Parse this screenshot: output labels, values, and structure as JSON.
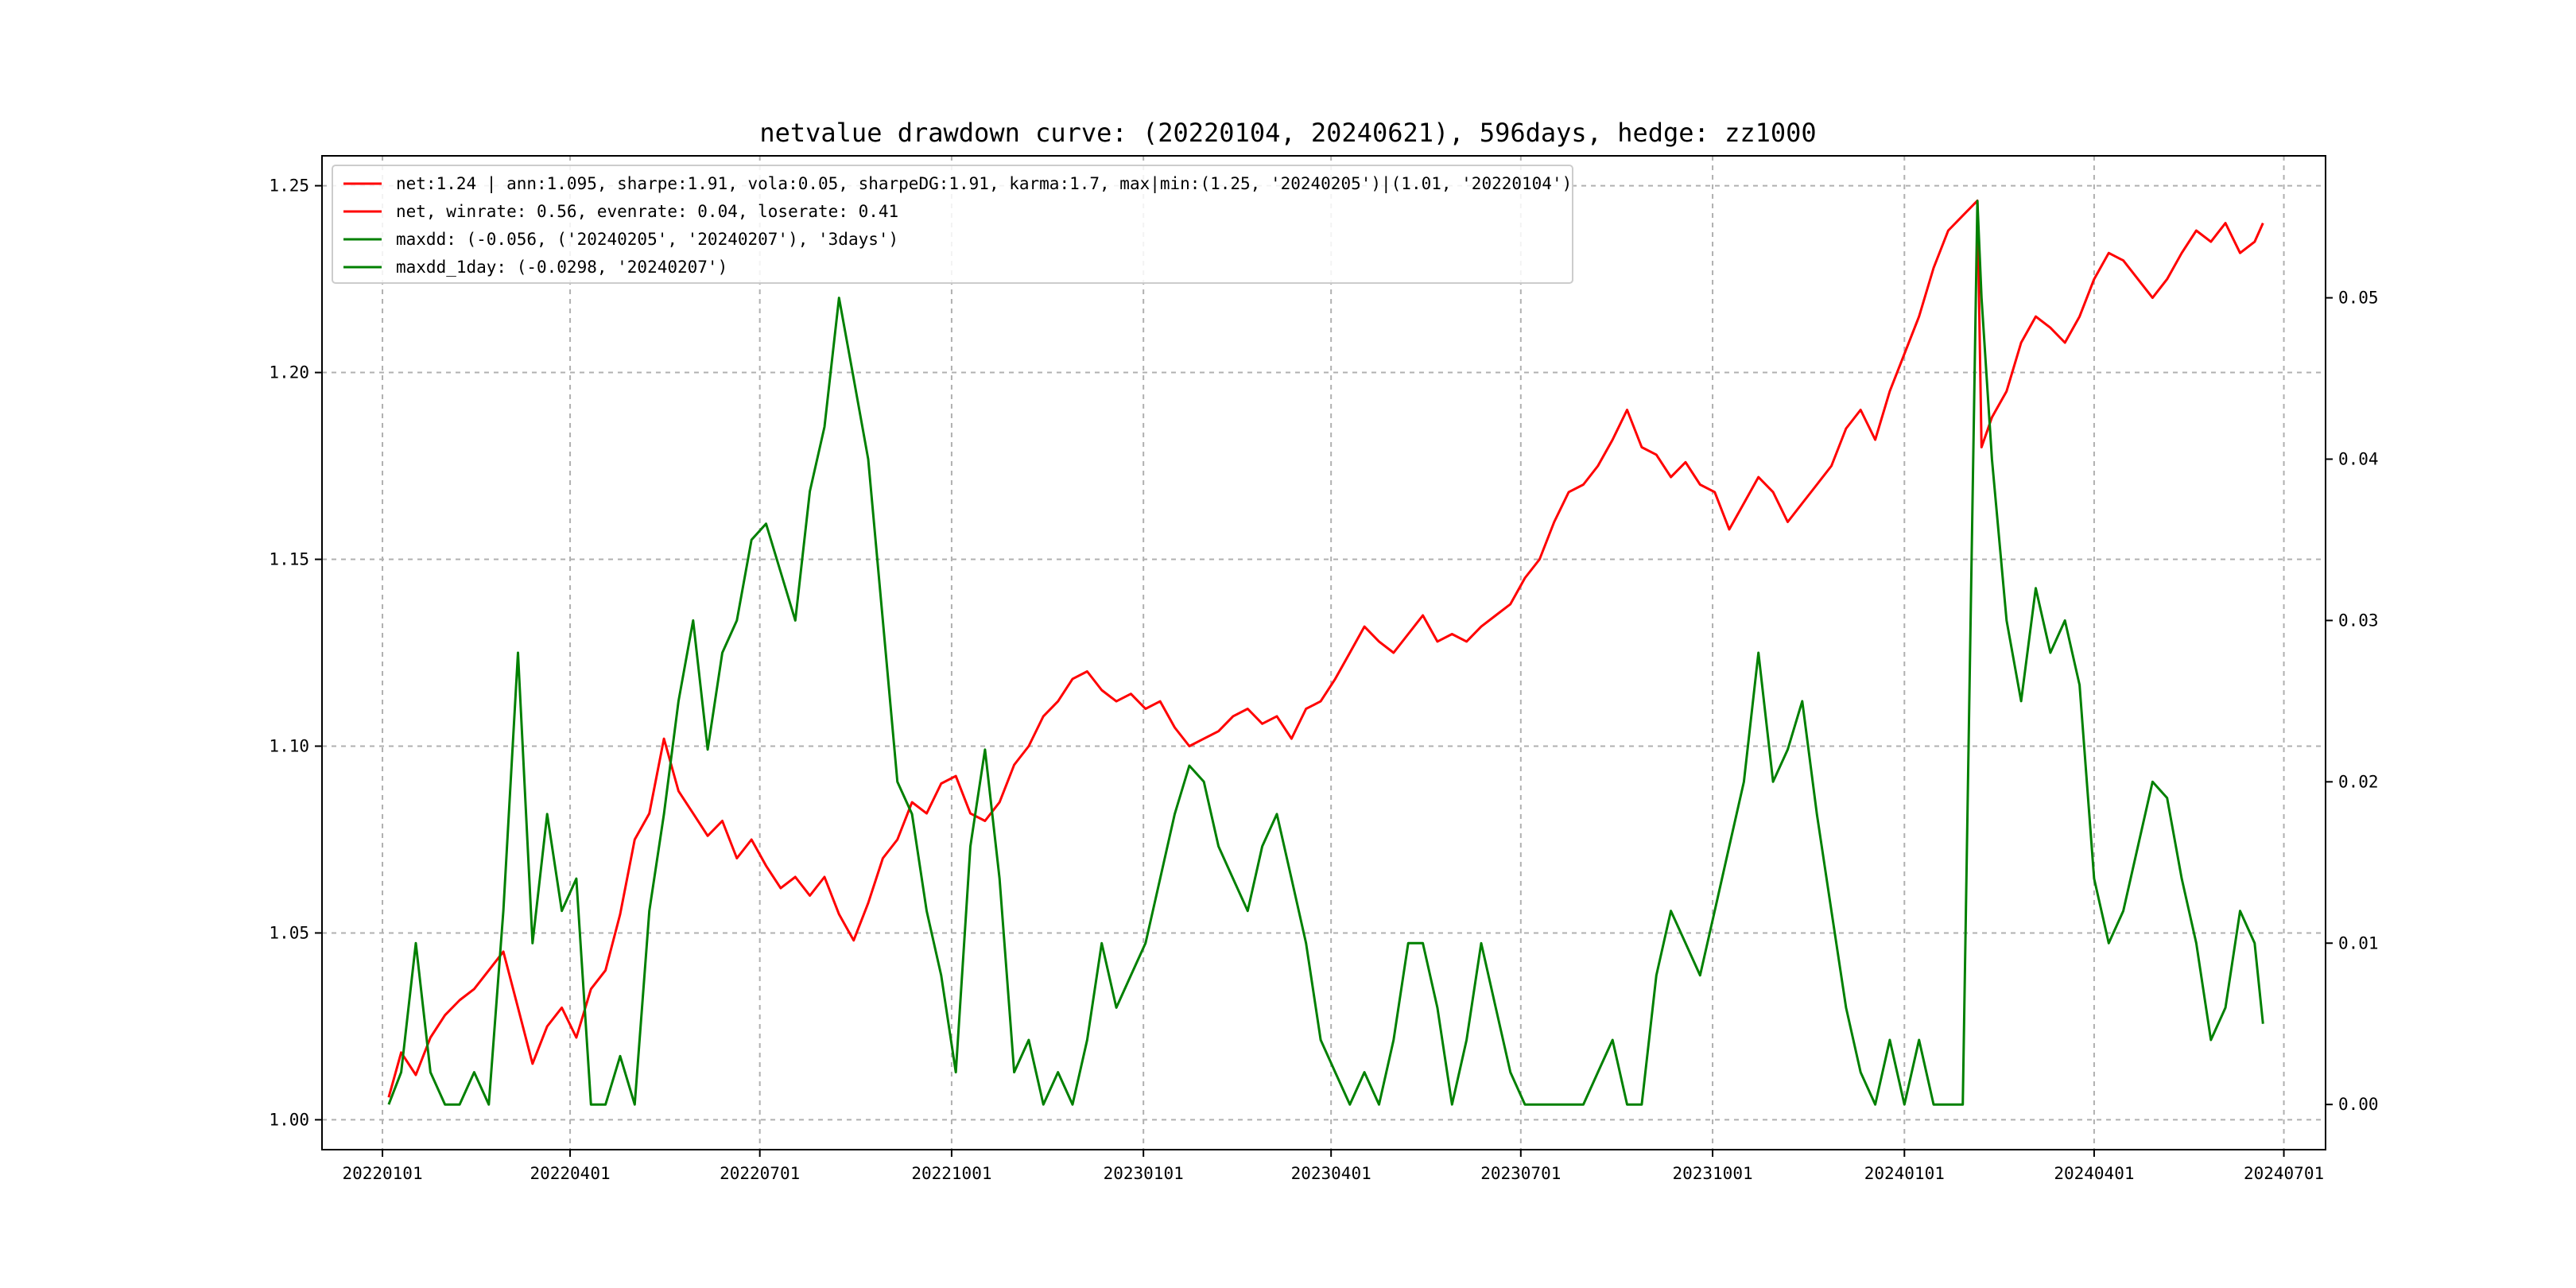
{
  "chart_data": {
    "type": "line",
    "title": "netvalue drawdown curve: (20220104, 20240621), 596days, hedge: zz1000",
    "xlabel": "",
    "ylabel": "",
    "x_ticks": [
      "20220101",
      "20220401",
      "20220701",
      "20221001",
      "20230101",
      "20230401",
      "20230701",
      "20231001",
      "20240101",
      "20240401",
      "20240701"
    ],
    "y_left_ticks": [
      "1.00",
      "1.05",
      "1.10",
      "1.15",
      "1.20",
      "1.25"
    ],
    "y_right_ticks": [
      "0.00",
      "0.01",
      "0.02",
      "0.03",
      "0.04",
      "0.05"
    ],
    "y_left_lim": [
      0.992,
      1.258
    ],
    "y_right_lim": [
      -0.0028,
      0.0588
    ],
    "x_lim": [
      "20211203",
      "20240721"
    ],
    "grid": true,
    "legend_position": "upper-left",
    "legend": [
      {
        "label": "net:1.24 | ann:1.095, sharpe:1.91, vola:0.05, sharpeDG:1.91, karma:1.7, max|min:(1.25, '20240205')|(1.01, '20220104')",
        "color": "#ff0000"
      },
      {
        "label": "net, winrate: 0.56, evenrate: 0.04, loserate: 0.41",
        "color": "#ff0000"
      },
      {
        "label": "maxdd: (-0.056, ('20240205', '20240207'), '3days')",
        "color": "#008000"
      },
      {
        "label": "maxdd_1day: (-0.0298, '20240207')",
        "color": "#008000"
      }
    ],
    "series": [
      {
        "name": "net",
        "axis": "left",
        "color": "#ff0000",
        "points": [
          [
            "20220104",
            1.006
          ],
          [
            "20220110",
            1.018
          ],
          [
            "20220117",
            1.012
          ],
          [
            "20220124",
            1.022
          ],
          [
            "20220131",
            1.028
          ],
          [
            "20220207",
            1.032
          ],
          [
            "20220214",
            1.035
          ],
          [
            "20220221",
            1.04
          ],
          [
            "20220228",
            1.045
          ],
          [
            "20220307",
            1.03
          ],
          [
            "20220314",
            1.015
          ],
          [
            "20220321",
            1.025
          ],
          [
            "20220328",
            1.03
          ],
          [
            "20220404",
            1.022
          ],
          [
            "20220411",
            1.035
          ],
          [
            "20220418",
            1.04
          ],
          [
            "20220425",
            1.055
          ],
          [
            "20220502",
            1.075
          ],
          [
            "20220509",
            1.082
          ],
          [
            "20220516",
            1.102
          ],
          [
            "20220523",
            1.088
          ],
          [
            "20220530",
            1.082
          ],
          [
            "20220606",
            1.076
          ],
          [
            "20220613",
            1.08
          ],
          [
            "20220620",
            1.07
          ],
          [
            "20220627",
            1.075
          ],
          [
            "20220704",
            1.068
          ],
          [
            "20220711",
            1.062
          ],
          [
            "20220718",
            1.065
          ],
          [
            "20220725",
            1.06
          ],
          [
            "20220801",
            1.065
          ],
          [
            "20220808",
            1.055
          ],
          [
            "20220815",
            1.048
          ],
          [
            "20220822",
            1.058
          ],
          [
            "20220829",
            1.07
          ],
          [
            "20220905",
            1.075
          ],
          [
            "20220912",
            1.085
          ],
          [
            "20220919",
            1.082
          ],
          [
            "20220926",
            1.09
          ],
          [
            "20221003",
            1.092
          ],
          [
            "20221010",
            1.082
          ],
          [
            "20221017",
            1.08
          ],
          [
            "20221024",
            1.085
          ],
          [
            "20221031",
            1.095
          ],
          [
            "20221107",
            1.1
          ],
          [
            "20221114",
            1.108
          ],
          [
            "20221121",
            1.112
          ],
          [
            "20221128",
            1.118
          ],
          [
            "20221205",
            1.12
          ],
          [
            "20221212",
            1.115
          ],
          [
            "20221219",
            1.112
          ],
          [
            "20221226",
            1.114
          ],
          [
            "20230102",
            1.11
          ],
          [
            "20230109",
            1.112
          ],
          [
            "20230116",
            1.105
          ],
          [
            "20230123",
            1.1
          ],
          [
            "20230130",
            1.102
          ],
          [
            "20230206",
            1.104
          ],
          [
            "20230213",
            1.108
          ],
          [
            "20230220",
            1.11
          ],
          [
            "20230227",
            1.106
          ],
          [
            "20230306",
            1.108
          ],
          [
            "20230313",
            1.102
          ],
          [
            "20230320",
            1.11
          ],
          [
            "20230327",
            1.112
          ],
          [
            "20230403",
            1.118
          ],
          [
            "20230410",
            1.125
          ],
          [
            "20230417",
            1.132
          ],
          [
            "20230424",
            1.128
          ],
          [
            "20230501",
            1.125
          ],
          [
            "20230508",
            1.13
          ],
          [
            "20230515",
            1.135
          ],
          [
            "20230522",
            1.128
          ],
          [
            "20230529",
            1.13
          ],
          [
            "20230605",
            1.128
          ],
          [
            "20230612",
            1.132
          ],
          [
            "20230619",
            1.135
          ],
          [
            "20230626",
            1.138
          ],
          [
            "20230703",
            1.145
          ],
          [
            "20230710",
            1.15
          ],
          [
            "20230717",
            1.16
          ],
          [
            "20230724",
            1.168
          ],
          [
            "20230731",
            1.17
          ],
          [
            "20230807",
            1.175
          ],
          [
            "20230814",
            1.182
          ],
          [
            "20230821",
            1.19
          ],
          [
            "20230828",
            1.18
          ],
          [
            "20230904",
            1.178
          ],
          [
            "20230911",
            1.172
          ],
          [
            "20230918",
            1.176
          ],
          [
            "20230925",
            1.17
          ],
          [
            "20231002",
            1.168
          ],
          [
            "20231009",
            1.158
          ],
          [
            "20231016",
            1.165
          ],
          [
            "20231023",
            1.172
          ],
          [
            "20231030",
            1.168
          ],
          [
            "20231106",
            1.16
          ],
          [
            "20231113",
            1.165
          ],
          [
            "20231120",
            1.17
          ],
          [
            "20231127",
            1.175
          ],
          [
            "20231204",
            1.185
          ],
          [
            "20231211",
            1.19
          ],
          [
            "20231218",
            1.182
          ],
          [
            "20231225",
            1.195
          ],
          [
            "20240101",
            1.205
          ],
          [
            "20240108",
            1.215
          ],
          [
            "20240115",
            1.228
          ],
          [
            "20240122",
            1.238
          ],
          [
            "20240129",
            1.242
          ],
          [
            "20240205",
            1.246
          ],
          [
            "20240207",
            1.18
          ],
          [
            "20240212",
            1.188
          ],
          [
            "20240219",
            1.195
          ],
          [
            "20240226",
            1.208
          ],
          [
            "20240304",
            1.215
          ],
          [
            "20240311",
            1.212
          ],
          [
            "20240318",
            1.208
          ],
          [
            "20240325",
            1.215
          ],
          [
            "20240401",
            1.225
          ],
          [
            "20240408",
            1.232
          ],
          [
            "20240415",
            1.23
          ],
          [
            "20240422",
            1.225
          ],
          [
            "20240429",
            1.22
          ],
          [
            "20240506",
            1.225
          ],
          [
            "20240513",
            1.232
          ],
          [
            "20240520",
            1.238
          ],
          [
            "20240527",
            1.235
          ],
          [
            "20240603",
            1.24
          ],
          [
            "20240610",
            1.232
          ],
          [
            "20240617",
            1.235
          ],
          [
            "20240621",
            1.24
          ]
        ]
      },
      {
        "name": "maxdd",
        "axis": "right",
        "color": "#008000",
        "points": [
          [
            "20220104",
            0.0
          ],
          [
            "20220110",
            0.002
          ],
          [
            "20220117",
            0.01
          ],
          [
            "20220124",
            0.002
          ],
          [
            "20220131",
            0.0
          ],
          [
            "20220207",
            0.0
          ],
          [
            "20220214",
            0.002
          ],
          [
            "20220221",
            0.0
          ],
          [
            "20220228",
            0.012
          ],
          [
            "20220307",
            0.028
          ],
          [
            "20220314",
            0.01
          ],
          [
            "20220321",
            0.018
          ],
          [
            "20220328",
            0.012
          ],
          [
            "20220404",
            0.014
          ],
          [
            "20220411",
            0.0
          ],
          [
            "20220418",
            0.0
          ],
          [
            "20220425",
            0.003
          ],
          [
            "20220502",
            0.0
          ],
          [
            "20220509",
            0.012
          ],
          [
            "20220516",
            0.018
          ],
          [
            "20220523",
            0.025
          ],
          [
            "20220530",
            0.03
          ],
          [
            "20220606",
            0.022
          ],
          [
            "20220613",
            0.028
          ],
          [
            "20220620",
            0.03
          ],
          [
            "20220627",
            0.035
          ],
          [
            "20220704",
            0.036
          ],
          [
            "20220711",
            0.033
          ],
          [
            "20220718",
            0.03
          ],
          [
            "20220725",
            0.038
          ],
          [
            "20220801",
            0.042
          ],
          [
            "20220808",
            0.05
          ],
          [
            "20220815",
            0.045
          ],
          [
            "20220822",
            0.04
          ],
          [
            "20220829",
            0.03
          ],
          [
            "20220905",
            0.02
          ],
          [
            "20220912",
            0.018
          ],
          [
            "20220919",
            0.012
          ],
          [
            "20220926",
            0.008
          ],
          [
            "20221003",
            0.002
          ],
          [
            "20221010",
            0.016
          ],
          [
            "20221017",
            0.022
          ],
          [
            "20221024",
            0.014
          ],
          [
            "20221031",
            0.002
          ],
          [
            "20221107",
            0.004
          ],
          [
            "20221114",
            0.0
          ],
          [
            "20221121",
            0.002
          ],
          [
            "20221128",
            0.0
          ],
          [
            "20221205",
            0.004
          ],
          [
            "20221212",
            0.01
          ],
          [
            "20221219",
            0.006
          ],
          [
            "20221226",
            0.008
          ],
          [
            "20230102",
            0.01
          ],
          [
            "20230109",
            0.014
          ],
          [
            "20230116",
            0.018
          ],
          [
            "20230123",
            0.021
          ],
          [
            "20230130",
            0.02
          ],
          [
            "20230206",
            0.016
          ],
          [
            "20230213",
            0.014
          ],
          [
            "20230220",
            0.012
          ],
          [
            "20230227",
            0.016
          ],
          [
            "20230306",
            0.018
          ],
          [
            "20230313",
            0.014
          ],
          [
            "20230320",
            0.01
          ],
          [
            "20230327",
            0.004
          ],
          [
            "20230403",
            0.002
          ],
          [
            "20230410",
            0.0
          ],
          [
            "20230417",
            0.002
          ],
          [
            "20230424",
            0.0
          ],
          [
            "20230501",
            0.004
          ],
          [
            "20230508",
            0.01
          ],
          [
            "20230515",
            0.01
          ],
          [
            "20230522",
            0.006
          ],
          [
            "20230529",
            0.0
          ],
          [
            "20230605",
            0.004
          ],
          [
            "20230612",
            0.01
          ],
          [
            "20230619",
            0.006
          ],
          [
            "20230626",
            0.002
          ],
          [
            "20230703",
            0.0
          ],
          [
            "20230710",
            0.0
          ],
          [
            "20230717",
            0.0
          ],
          [
            "20230724",
            0.0
          ],
          [
            "20230731",
            0.0
          ],
          [
            "20230807",
            0.002
          ],
          [
            "20230814",
            0.004
          ],
          [
            "20230821",
            0.0
          ],
          [
            "20230828",
            0.0
          ],
          [
            "20230904",
            0.008
          ],
          [
            "20230911",
            0.012
          ],
          [
            "20230918",
            0.01
          ],
          [
            "20230925",
            0.008
          ],
          [
            "20231002",
            0.012
          ],
          [
            "20231009",
            0.016
          ],
          [
            "20231016",
            0.02
          ],
          [
            "20231023",
            0.028
          ],
          [
            "20231030",
            0.02
          ],
          [
            "20231106",
            0.022
          ],
          [
            "20231113",
            0.025
          ],
          [
            "20231120",
            0.018
          ],
          [
            "20231127",
            0.012
          ],
          [
            "20231204",
            0.006
          ],
          [
            "20231211",
            0.002
          ],
          [
            "20231218",
            0.0
          ],
          [
            "20231225",
            0.004
          ],
          [
            "20240101",
            0.0
          ],
          [
            "20240108",
            0.004
          ],
          [
            "20240115",
            0.0
          ],
          [
            "20240122",
            0.0
          ],
          [
            "20240129",
            0.0
          ],
          [
            "20240205",
            0.056
          ],
          [
            "20240207",
            0.05
          ],
          [
            "20240212",
            0.04
          ],
          [
            "20240219",
            0.03
          ],
          [
            "20240226",
            0.025
          ],
          [
            "20240304",
            0.032
          ],
          [
            "20240311",
            0.028
          ],
          [
            "20240318",
            0.03
          ],
          [
            "20240325",
            0.026
          ],
          [
            "20240401",
            0.014
          ],
          [
            "20240408",
            0.01
          ],
          [
            "20240415",
            0.012
          ],
          [
            "20240422",
            0.016
          ],
          [
            "20240429",
            0.02
          ],
          [
            "20240506",
            0.019
          ],
          [
            "20240513",
            0.014
          ],
          [
            "20240520",
            0.01
          ],
          [
            "20240527",
            0.004
          ],
          [
            "20240603",
            0.006
          ],
          [
            "20240610",
            0.012
          ],
          [
            "20240617",
            0.01
          ],
          [
            "20240621",
            0.005
          ]
        ]
      }
    ]
  }
}
